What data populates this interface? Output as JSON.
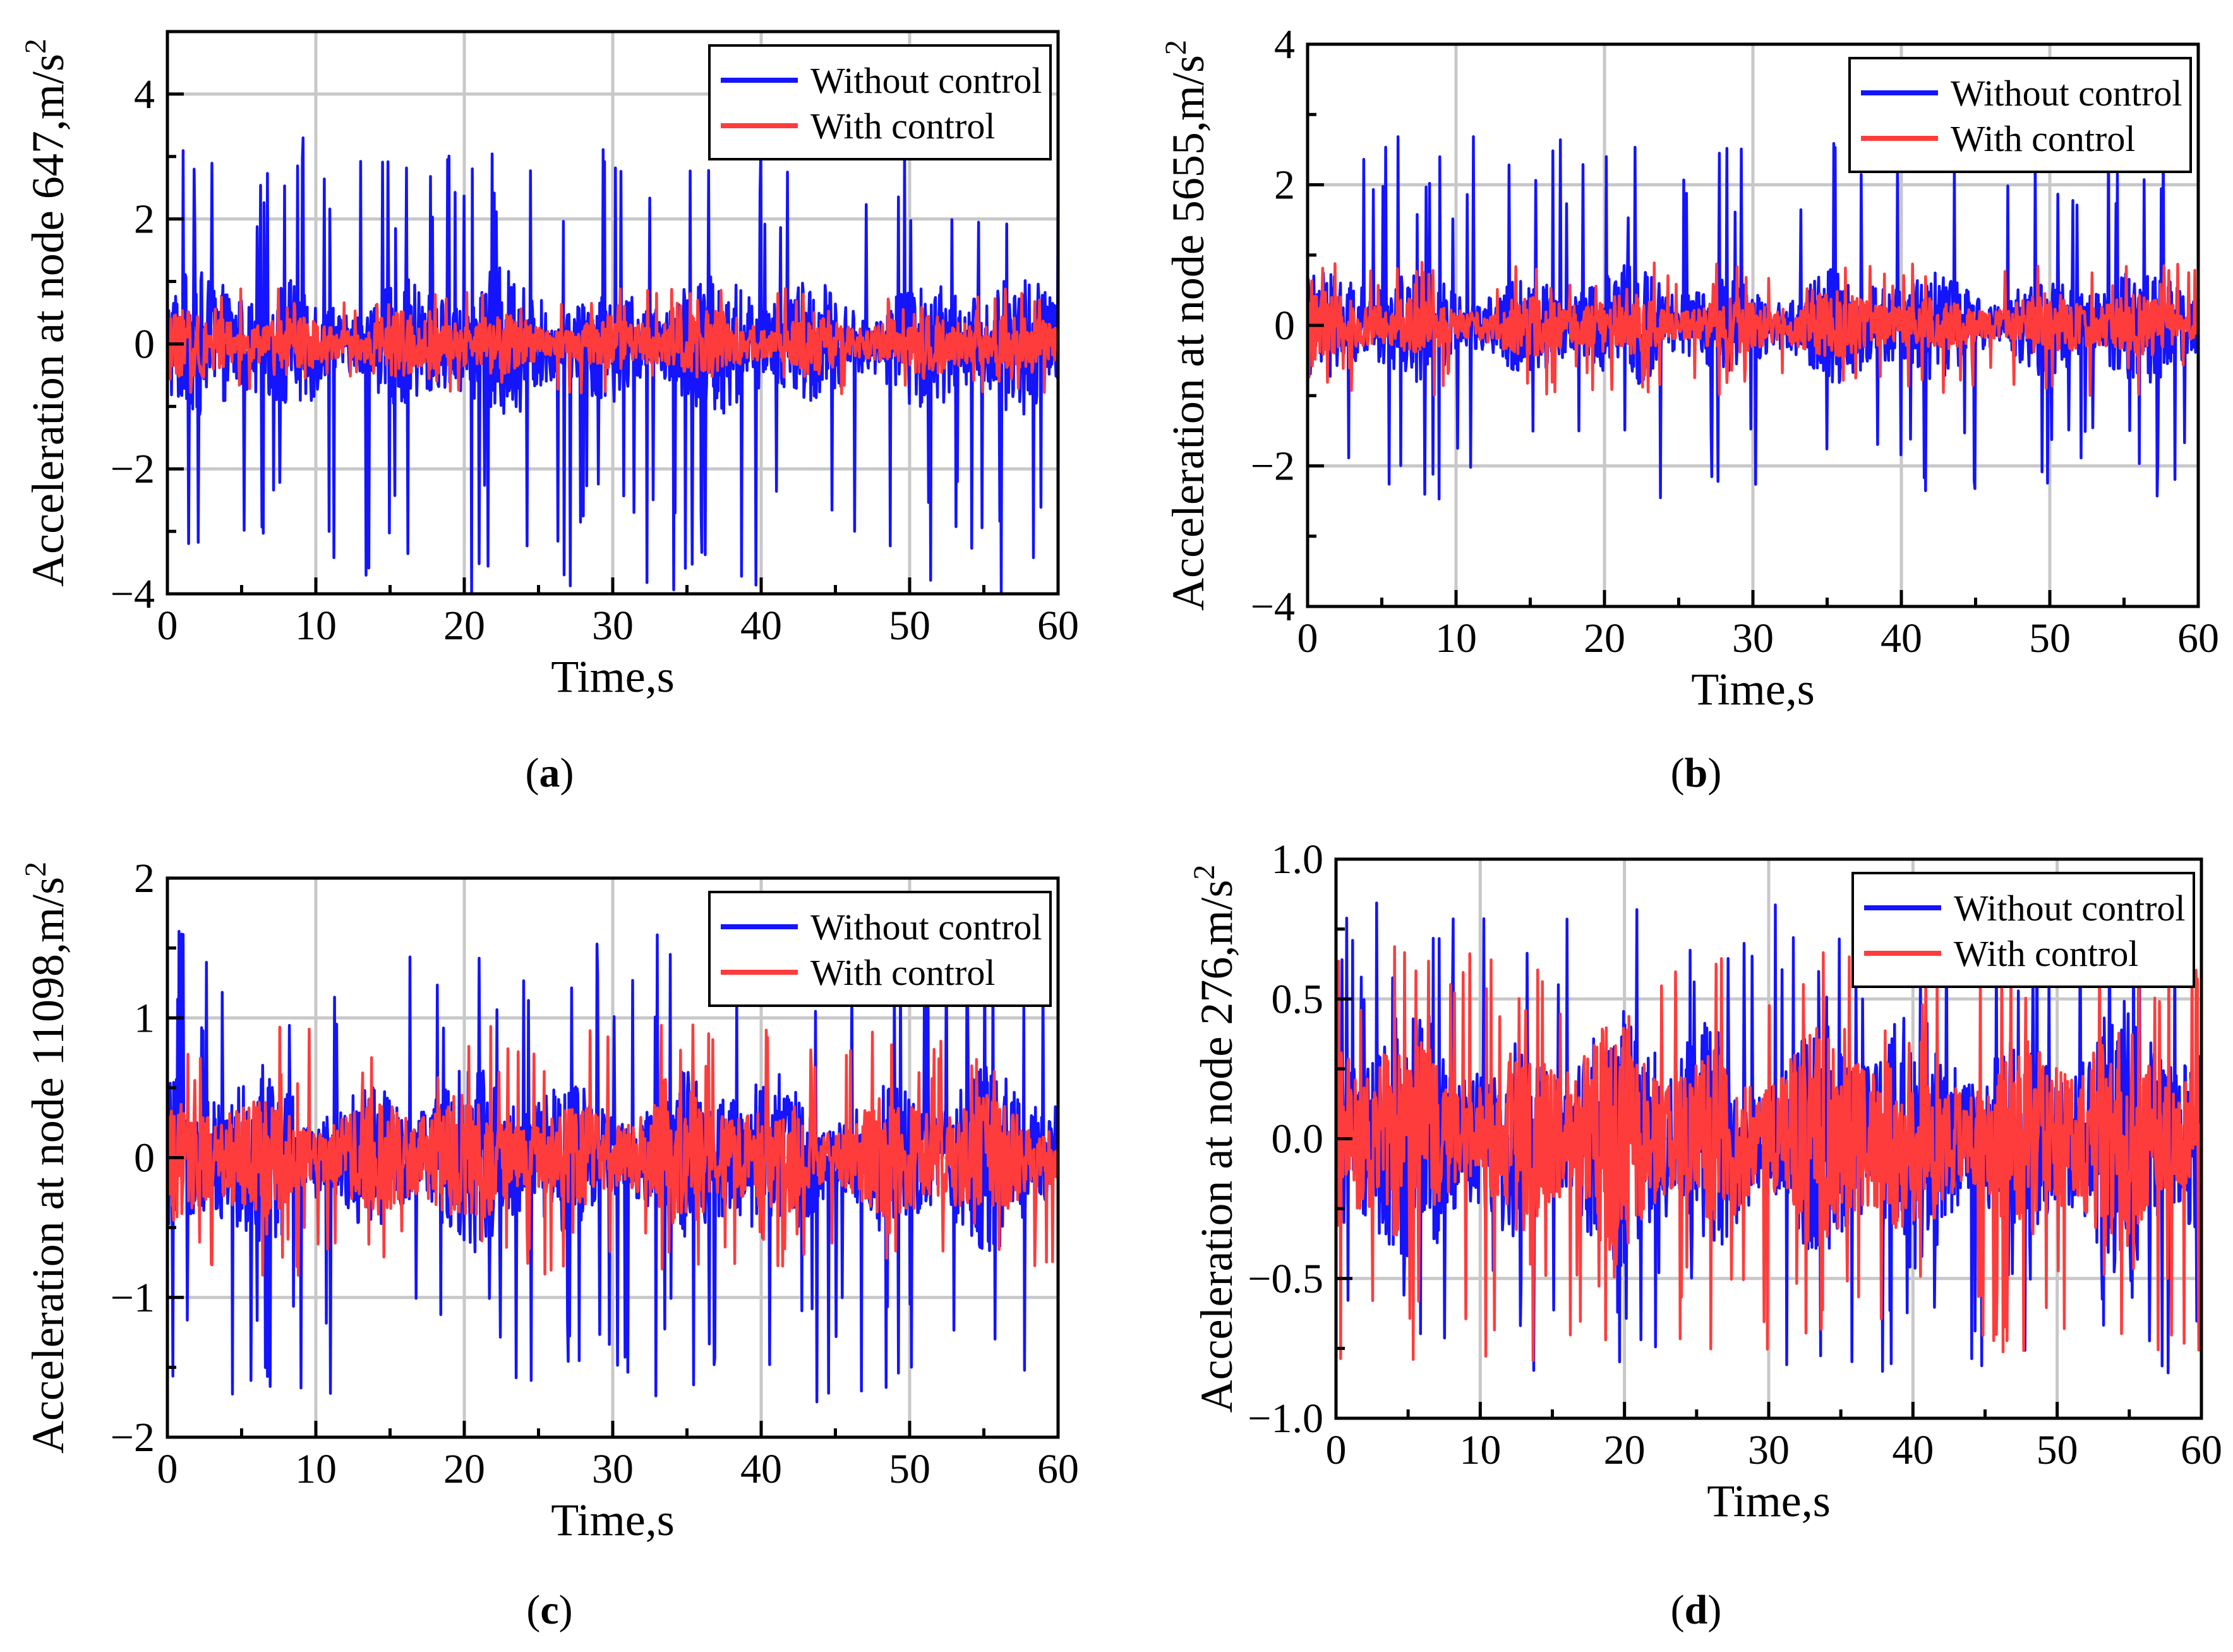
{
  "figure": {
    "captions": [
      "(a)",
      "(b)",
      "(c)",
      "(d)"
    ]
  },
  "chart_data": [
    {
      "type": "line",
      "panel": "a",
      "caption_letter": "a",
      "xlabel": "Time,s",
      "ylabel": "Acceleration at node 647,m/s",
      "ylabel_superscript": "2",
      "xlim": [
        0,
        60
      ],
      "ylim": [
        -4,
        5
      ],
      "xticks": [
        0,
        10,
        20,
        30,
        40,
        50,
        60
      ],
      "xtick_labels": [
        "0",
        "10",
        "20",
        "30",
        "40",
        "50",
        "60"
      ],
      "yticks": [
        -4,
        -2,
        0,
        2,
        4
      ],
      "ytick_labels": [
        "−4",
        "−2",
        "0",
        "2",
        "4"
      ],
      "grid": true,
      "legend_position": "top-right",
      "series": [
        {
          "name": "Without control",
          "color": "#1414ff",
          "amplitude": 1.0,
          "peak_max": 3.3,
          "peak_min": -4.0
        },
        {
          "name": "With control",
          "color": "#ff3c3c",
          "amplitude": 0.45,
          "peak_max": 0.9,
          "peak_min": -0.8
        }
      ]
    },
    {
      "type": "line",
      "panel": "b",
      "caption_letter": "b",
      "xlabel": "Time,s",
      "ylabel": "Acceleration at node 5655,m/s",
      "ylabel_superscript": "2",
      "xlim": [
        0,
        60
      ],
      "ylim": [
        -4,
        4
      ],
      "xticks": [
        0,
        10,
        20,
        30,
        40,
        50,
        60
      ],
      "xtick_labels": [
        "0",
        "10",
        "20",
        "30",
        "40",
        "50",
        "60"
      ],
      "yticks": [
        -4,
        -2,
        0,
        2,
        4
      ],
      "ytick_labels": [
        "−4",
        "−2",
        "0",
        "2",
        "4"
      ],
      "grid": true,
      "legend_position": "top-right",
      "series": [
        {
          "name": "Without control",
          "color": "#1414ff",
          "amplitude": 0.7,
          "peak_max": 2.75,
          "peak_min": -2.6
        },
        {
          "name": "With control",
          "color": "#ff3c3c",
          "amplitude": 0.4,
          "peak_max": 0.9,
          "peak_min": -1.0
        }
      ]
    },
    {
      "type": "line",
      "panel": "c",
      "caption_letter": "c",
      "xlabel": "Time,s",
      "ylabel": "Acceleration at node 11098,m/s",
      "ylabel_superscript": "2",
      "xlim": [
        0,
        60
      ],
      "ylim": [
        -2,
        2
      ],
      "xticks": [
        0,
        10,
        20,
        30,
        40,
        50,
        60
      ],
      "xtick_labels": [
        "0",
        "10",
        "20",
        "30",
        "40",
        "50",
        "60"
      ],
      "yticks": [
        -2,
        -1,
        0,
        1,
        2
      ],
      "ytick_labels": [
        "−2",
        "−1",
        "0",
        "1",
        "2"
      ],
      "grid": true,
      "legend_position": "top-right",
      "series": [
        {
          "name": "Without control",
          "color": "#1414ff",
          "amplitude": 0.55,
          "peak_max": 1.65,
          "peak_min": -1.75
        },
        {
          "name": "With control",
          "color": "#ff3c3c",
          "amplitude": 0.4,
          "peak_max": 0.95,
          "peak_min": -0.85
        }
      ]
    },
    {
      "type": "line",
      "panel": "d",
      "caption_letter": "d",
      "xlabel": "Time,s",
      "ylabel": "Acceleration at node 276,m/s",
      "ylabel_superscript": "2",
      "xlim": [
        0,
        60
      ],
      "ylim": [
        -1.0,
        1.0
      ],
      "xticks": [
        0,
        10,
        20,
        30,
        40,
        50,
        60
      ],
      "xtick_labels": [
        "0",
        "10",
        "20",
        "30",
        "40",
        "50",
        "60"
      ],
      "yticks": [
        -1.0,
        -0.5,
        0.0,
        0.5,
        1.0
      ],
      "ytick_labels": [
        "−1.0",
        "−0.5",
        "0.0",
        "0.5",
        "1.0"
      ],
      "grid": true,
      "legend_position": "top-right",
      "series": [
        {
          "name": "Without control",
          "color": "#1414ff",
          "amplitude": 0.4,
          "peak_max": 0.86,
          "peak_min": -0.85
        },
        {
          "name": "With control",
          "color": "#ff3c3c",
          "amplitude": 0.34,
          "peak_max": 0.7,
          "peak_min": -0.8
        }
      ]
    }
  ]
}
